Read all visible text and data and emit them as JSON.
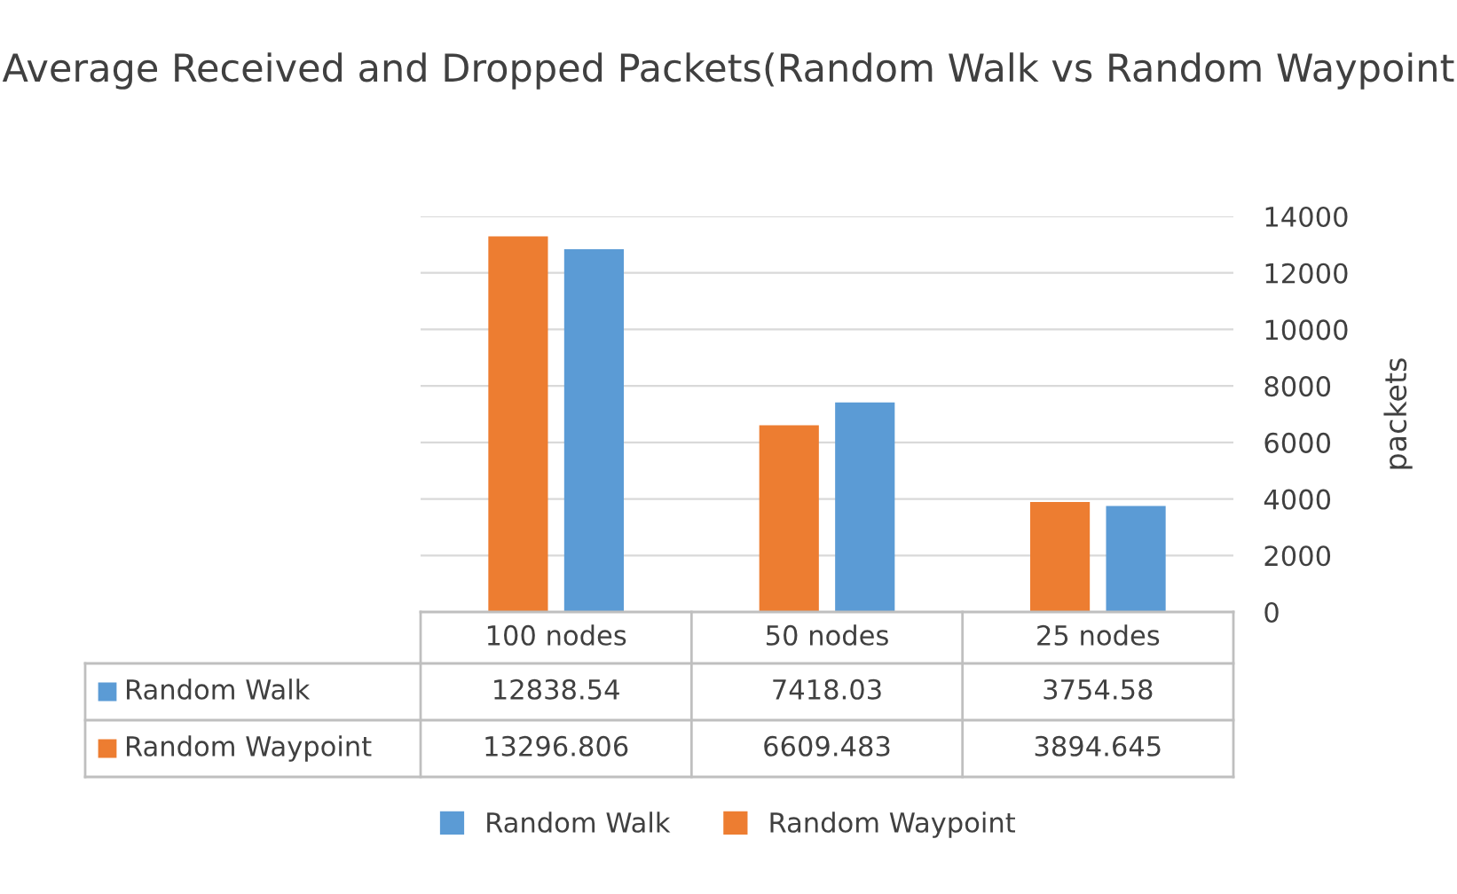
{
  "chart_data": {
    "type": "bar",
    "title": "Average Received and Dropped Packets(Random Walk vs Random Waypoint",
    "ylabel": "packets",
    "categories": [
      "100 nodes",
      "50 nodes",
      "25 nodes"
    ],
    "series": [
      {
        "name": "Random Walk",
        "color": "#5b9bd5",
        "values": [
          12838.54,
          7418.03,
          3754.58
        ]
      },
      {
        "name": "Random Waypoint",
        "color": "#ed7d31",
        "values": [
          13296.806,
          6609.483,
          3894.645
        ]
      }
    ],
    "ylim": [
      0,
      14000
    ],
    "yticks": [
      0,
      2000,
      4000,
      6000,
      8000,
      10000,
      12000,
      14000
    ],
    "grid": "y",
    "legend": "bottom",
    "data_labels": true
  }
}
